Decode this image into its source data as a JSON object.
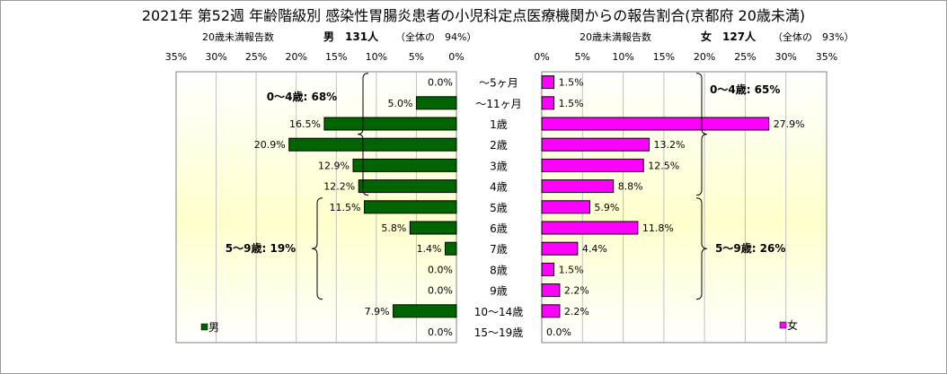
{
  "chart_data": {
    "type": "bar",
    "title": "2021年 第52週 年齢階級別 感染性胃腸炎患者の小児科定点医療機関からの報告割合(京都府 20歳未満)",
    "categories": [
      "～5ヶ月",
      "～11ヶ月",
      "1歳",
      "2歳",
      "3歳",
      "4歳",
      "5歳",
      "6歳",
      "7歳",
      "8歳",
      "9歳",
      "10～14歳",
      "15～19歳"
    ],
    "xlim": [
      0,
      35
    ],
    "ticks": [
      "35%",
      "30%",
      "25%",
      "20%",
      "15%",
      "10%",
      "5%",
      "0%"
    ],
    "ticks_right": [
      "0%",
      "5%",
      "10%",
      "15%",
      "20%",
      "25%",
      "30%",
      "35%"
    ],
    "series": [
      {
        "name": "男",
        "side": "left",
        "values": [
          0.0,
          5.0,
          16.5,
          20.9,
          12.9,
          12.2,
          11.5,
          5.8,
          1.4,
          0.0,
          0.0,
          7.9,
          0.0
        ],
        "labels": [
          "0.0%",
          "5.0%",
          "16.5%",
          "20.9%",
          "12.9%",
          "12.2%",
          "11.5%",
          "5.8%",
          "1.4%",
          "0.0%",
          "0.0%",
          "7.9%",
          "0.0%"
        ],
        "color": "#006400",
        "header_sub": "20歳未満報告数",
        "header": "男　131人",
        "header_share": "（全体の　94%）",
        "groups": [
          {
            "label": "0～4歳: 68%",
            "from": 0,
            "to": 5
          },
          {
            "label": "5～9歳: 19%",
            "from": 6,
            "to": 10
          }
        ]
      },
      {
        "name": "女",
        "side": "right",
        "values": [
          1.5,
          1.5,
          27.9,
          13.2,
          12.5,
          8.8,
          5.9,
          11.8,
          4.4,
          1.5,
          2.2,
          2.2,
          0.0
        ],
        "labels": [
          "1.5%",
          "1.5%",
          "27.9%",
          "13.2%",
          "12.5%",
          "8.8%",
          "5.9%",
          "11.8%",
          "4.4%",
          "1.5%",
          "2.2%",
          "2.2%",
          "0.0%"
        ],
        "color": "#ff00ff",
        "header_sub": "20歳未満報告数",
        "header": "女　127人",
        "header_share": "（全体の　93%）",
        "groups": [
          {
            "label": "0～4歳: 65%",
            "from": 0,
            "to": 5
          },
          {
            "label": "5～9歳: 26%",
            "from": 6,
            "to": 10
          }
        ]
      }
    ],
    "legend_left": "男",
    "legend_right": "女",
    "grid": true
  }
}
